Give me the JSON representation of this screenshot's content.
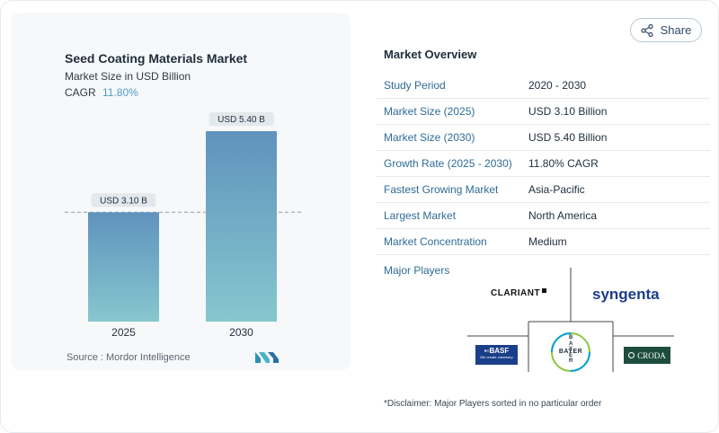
{
  "chart": {
    "title": "Seed Coating Materials Market",
    "subtitle": "Market Size in USD Billion",
    "cagr_label": "CAGR",
    "cagr_value": "11.80%",
    "source": "Source :  Mordor Intelligence"
  },
  "chart_data": {
    "type": "bar",
    "title": "Seed Coating Materials Market",
    "subtitle": "Market Size in USD Billion",
    "categories": [
      "2025",
      "2030"
    ],
    "values": [
      3.1,
      5.4
    ],
    "data_labels": [
      "USD 3.10 B",
      "USD 5.40 B"
    ],
    "ylim": [
      0,
      5.6
    ],
    "grid": false,
    "colors": [
      "#5f9ac1",
      "#86c8d0"
    ]
  },
  "share": {
    "label": "Share",
    "icon": "share-icon"
  },
  "overview": {
    "title": "Market Overview",
    "rows": [
      {
        "key": "Study Period",
        "value": "2020 - 2030"
      },
      {
        "key": "Market Size (2025)",
        "value": "USD 3.10 Billion"
      },
      {
        "key": "Market Size (2030)",
        "value": "USD 5.40 Billion"
      },
      {
        "key": "Growth Rate (2025 - 2030)",
        "value": "11.80% CAGR"
      },
      {
        "key": "Fastest Growing Market",
        "value": "Asia-Pacific"
      },
      {
        "key": "Largest Market",
        "value": "North America"
      },
      {
        "key": "Market Concentration",
        "value": "Medium"
      }
    ]
  },
  "players": {
    "title": "Major Players",
    "logos": {
      "clariant": "CLARIANT",
      "syngenta": "syngenta",
      "basf": "BASF",
      "basf_tag": "We create chemistry",
      "bayer_top": "BAYER",
      "bayer_side": "BAYER",
      "croda": "CRODA"
    }
  },
  "disclaimer": "*Disclaimer: Major Players sorted in no particular order"
}
